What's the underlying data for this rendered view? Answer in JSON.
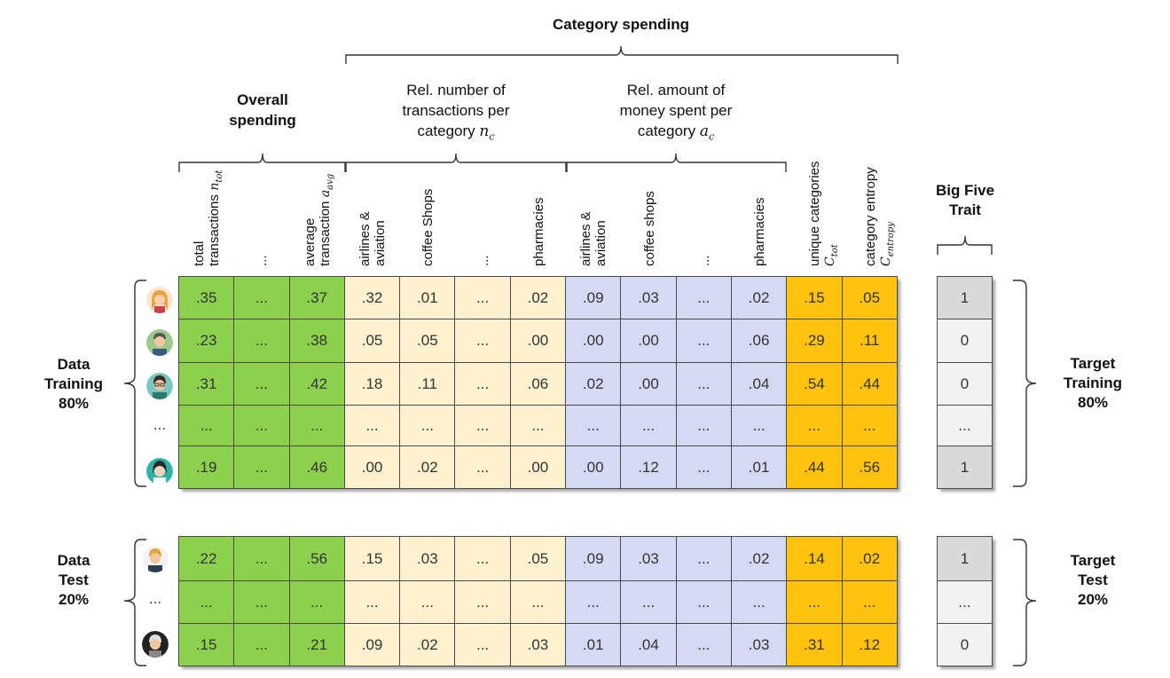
{
  "header": {
    "category_spending": "Category spending",
    "overall_spending_line1": "Overall",
    "overall_spending_line2": "spending",
    "rel_number_line1": "Rel. number of",
    "rel_number_line2": "transactions per",
    "rel_number_line3": "category",
    "rel_number_symbol": "n",
    "rel_number_sub": "c",
    "rel_amount_line1": "Rel. amount of",
    "rel_amount_line2": "money spent per",
    "rel_amount_line3": "category",
    "rel_amount_symbol": "a",
    "rel_amount_sub": "c",
    "big_five_line1": "Big Five",
    "big_five_line2": "Trait"
  },
  "columns": [
    {
      "line1": "total",
      "line2": "transactions",
      "sym": "n",
      "sub": "tot"
    },
    {
      "line1": "...",
      "line2": "",
      "sym": "",
      "sub": ""
    },
    {
      "line1": "average",
      "line2": "transaction",
      "sym": "a",
      "sub": "avg"
    },
    {
      "line1": "airlines &",
      "line2": "aviation",
      "sym": "",
      "sub": ""
    },
    {
      "line1": "coffee Shops",
      "line2": "",
      "sym": "",
      "sub": ""
    },
    {
      "line1": "...",
      "line2": "",
      "sym": "",
      "sub": ""
    },
    {
      "line1": "pharmacies",
      "line2": "",
      "sym": "",
      "sub": ""
    },
    {
      "line1": "airlines &",
      "line2": "aviation",
      "sym": "",
      "sub": ""
    },
    {
      "line1": "coffee shops",
      "line2": "",
      "sym": "",
      "sub": ""
    },
    {
      "line1": "...",
      "line2": "",
      "sym": "",
      "sub": ""
    },
    {
      "line1": "pharmacies",
      "line2": "",
      "sym": "",
      "sub": ""
    },
    {
      "line1": "unique categories",
      "line2": "",
      "sym": "C",
      "sub": "tot"
    },
    {
      "line1": "category entropy",
      "line2": "",
      "sym": "C",
      "sub": "entropy"
    }
  ],
  "colors": {
    "overall": "#8cd04e",
    "rel_number": "#fdf1cf",
    "rel_amount": "#d6d9f4",
    "entropy": "#ffc20e",
    "target_dark": "#d9d9d9",
    "target_light": "#f2f2f2"
  },
  "training": {
    "label_line1": "Data",
    "label_line2": "Training",
    "label_line3": "80%",
    "target_line1": "Target",
    "target_line2": "Training",
    "target_line3": "80%",
    "row_dots": "...",
    "rows": [
      [
        ".35",
        "...",
        ".37",
        ".32",
        ".01",
        "...",
        ".02",
        ".09",
        ".03",
        "...",
        ".02",
        ".15",
        ".05"
      ],
      [
        ".23",
        "...",
        ".38",
        ".05",
        ".05",
        "...",
        ".00",
        ".00",
        ".00",
        "...",
        ".06",
        ".29",
        ".11"
      ],
      [
        ".31",
        "...",
        ".42",
        ".18",
        ".11",
        "...",
        ".06",
        ".02",
        ".00",
        "...",
        ".04",
        ".54",
        ".44"
      ],
      [
        "...",
        "...",
        "...",
        "...",
        "...",
        "...",
        "...",
        "...",
        "...",
        "...",
        "...",
        "...",
        "..."
      ],
      [
        ".19",
        "...",
        ".46",
        ".00",
        ".02",
        "...",
        ".00",
        ".00",
        ".12",
        "...",
        ".01",
        ".44",
        ".56"
      ]
    ],
    "targets": [
      "1",
      "0",
      "0",
      "...",
      "1"
    ]
  },
  "test": {
    "label_line1": "Data",
    "label_line2": "Test",
    "label_line3": "20%",
    "target_line1": "Target",
    "target_line2": "Test",
    "target_line3": "20%",
    "row_dots": "...",
    "rows": [
      [
        ".22",
        "...",
        ".56",
        ".15",
        ".03",
        "...",
        ".05",
        ".09",
        ".03",
        "...",
        ".02",
        ".14",
        ".02"
      ],
      [
        "...",
        "...",
        "...",
        "...",
        "...",
        "...",
        "...",
        "...",
        "...",
        "...",
        "...",
        "...",
        "..."
      ],
      [
        ".15",
        "...",
        ".21",
        ".09",
        ".02",
        "...",
        ".03",
        ".01",
        ".04",
        "...",
        ".03",
        ".31",
        ".12"
      ]
    ],
    "targets": [
      "1",
      "...",
      "0"
    ]
  }
}
